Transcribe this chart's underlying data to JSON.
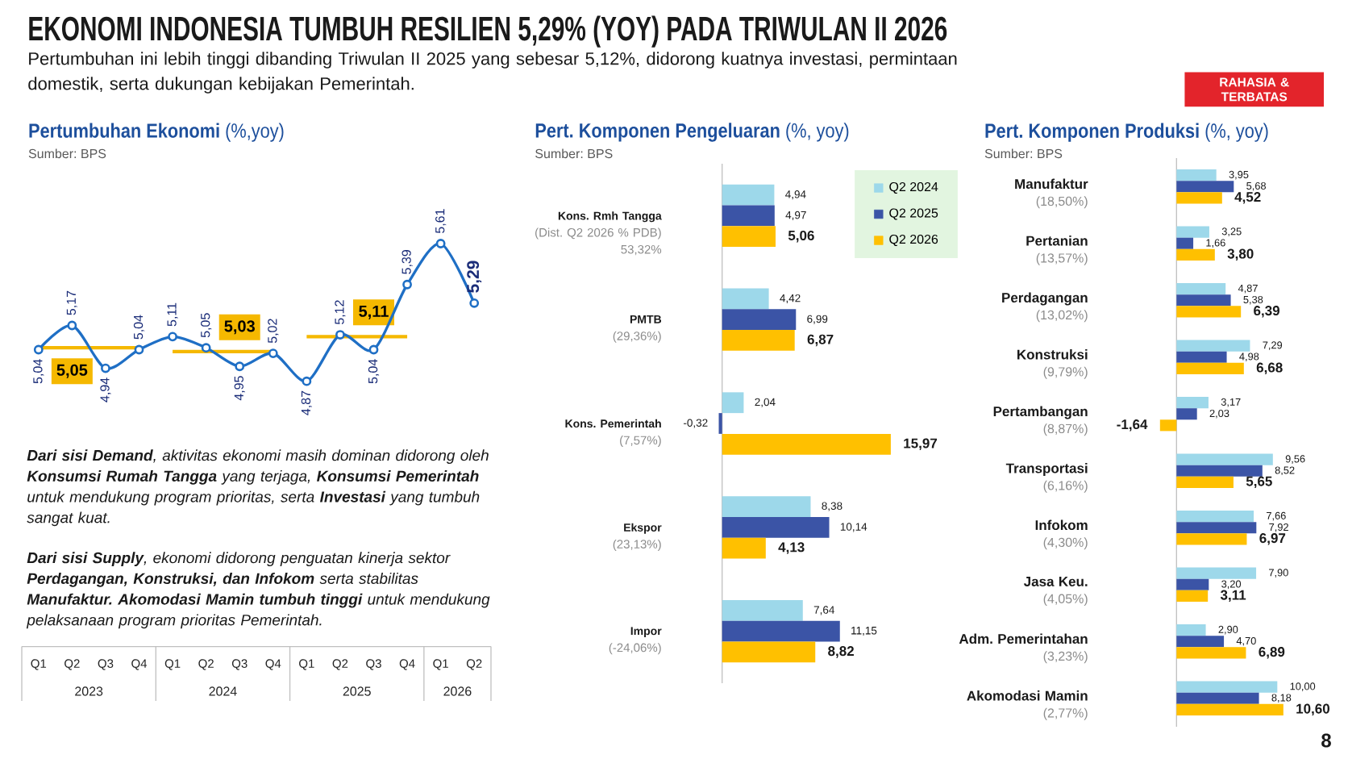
{
  "chart_data": [
    {
      "type": "other",
      "title": "EKONOMI INDONESIA TUMBUH RESILIEN 5,29% (YOY) PADA TRIWULAN II 2026",
      "subtitle": "Pertumbuhan ini lebih tinggi dibanding Triwulan II 2025 yang sebesar 5,12%, didorong kuatnya investasi, permintaan domestik, serta dukungan kebijakan Pemerintah.",
      "annotations": [
        "RAHASIA & TERBATAS",
        "**Dari sisi Demand**, aktivitas ekonomi masih dominan didorong oleh **Konsumsi Rumah Tangga** yang terjaga, **Konsumsi Pemerintah** untuk mendukung program prioritas, serta **Investasi** yang tumbuh sangat kuat.",
        "**Dari sisi Supply**, ekonomi didorong penguatan kinerja sektor **Perdagangan, Konstruksi, dan Infokom** serta stabilitas **Manufaktur. Akomodasi Mamin tumbuh tinggi** untuk mendukung pelaksanaan program prioritas Pemerintah.",
        "8"
      ]
    },
    {
      "type": "line",
      "title": "**Pertumbuhan Ekonomi** (%,yoy)",
      "annotations": [
        "Sumber: BPS",
        "2023",
        "2024",
        "2025",
        "2026"
      ],
      "categories": [
        "Q1",
        "Q2",
        "Q3",
        "Q4",
        "Q1",
        "Q2",
        "Q3",
        "Q4",
        "Q1",
        "Q2",
        "Q3",
        "Q4",
        "Q1",
        "Q2"
      ],
      "series": [
        {
          "color": "#1f6fc5",
          "values": [
            5.04,
            5.17,
            4.94,
            5.04,
            5.11,
            5.05,
            4.95,
            5.02,
            4.87,
            5.12,
            5.04,
            5.39,
            5.61,
            5.29
          ],
          "value_labels": [
            "5,04",
            "5,17",
            "4,94",
            "5,04",
            "5,11",
            "5,05",
            "4,95",
            "5,02",
            "4,87",
            "5,12",
            "5,04",
            "5,39",
            "5,61",
            "5,29"
          ]
        }
      ],
      "ref_lines": [
        {
          "axis": "y",
          "value": 5.05,
          "label": "5,05",
          "color": "#f5b800"
        },
        {
          "axis": "y",
          "value": 5.03,
          "label": "5,03",
          "color": "#f5b800"
        },
        {
          "axis": "y",
          "value": 5.11,
          "label": "5,11",
          "color": "#f5b800"
        }
      ],
      "marker": "circle",
      "tick_labels": "x"
    },
    {
      "type": "bar",
      "orientation": "horizontal",
      "title": "**Pert. Komponen Pengeluaran** (%, yoy)",
      "annotations": [
        "Sumber: BPS"
      ],
      "categories": [
        "**Kons. Rmh Tangga** (Dist. Q2 2026 % PDB)\n53,32%",
        "**PMTB** (29,36%)",
        "**Kons. Pemerintah** (7,57%)",
        "**Ekspor** (23,13%)",
        "**Impor** (-24,06%)"
      ],
      "series": [
        {
          "name": "Q2 2024",
          "color": "#9dd8ea",
          "values": [
            4.94,
            4.42,
            2.04,
            8.38,
            7.64
          ],
          "value_labels": [
            "4,94",
            "4,42",
            "2,04",
            "8,38",
            "7,64"
          ]
        },
        {
          "name": "Q2 2025",
          "color": "#3b54a6",
          "values": [
            4.97,
            6.99,
            -0.32,
            10.14,
            11.15
          ],
          "value_labels": [
            "4,97",
            "6,99",
            "-0,32",
            "10,14",
            "11,15"
          ]
        },
        {
          "name": "Q2 2026",
          "color": "#ffc000",
          "values": [
            5.06,
            6.87,
            15.97,
            4.13,
            8.82
          ],
          "value_labels": [
            "5,06",
            "6,87",
            "15,97",
            "4,13",
            "8,82"
          ]
        }
      ],
      "legend": "top right",
      "tick_labels": "y"
    },
    {
      "type": "bar",
      "orientation": "horizontal",
      "title": "**Pert. Komponen Produksi** (%, yoy)",
      "annotations": [
        "Sumber: BPS"
      ],
      "categories": [
        "**Manufaktur** (18,50%)",
        "**Pertanian** (13,57%)",
        "**Perdagangan** (13,02%)",
        "**Konstruksi** (9,79%)",
        "**Pertambangan** (8,87%)",
        "**Transportasi** (6,16%)",
        "**Infokom** (4,30%)",
        "**Jasa Keu.** (4,05%)",
        "**Adm. Pemerintahan** (3,23%)",
        "**Akomodasi Mamin** (2,77%)"
      ],
      "series": [
        {
          "color": "#9dd8ea",
          "values": [
            3.95,
            3.25,
            4.87,
            7.29,
            3.17,
            9.56,
            7.66,
            7.9,
            2.9,
            10.0
          ],
          "value_labels": [
            "3,95",
            "3,25",
            "4,87",
            "7,29",
            "3,17",
            "9,56",
            "7,66",
            "7,90",
            "2,90",
            "10,00"
          ]
        },
        {
          "color": "#3b54a6",
          "values": [
            5.68,
            1.66,
            5.38,
            4.98,
            2.03,
            8.52,
            7.92,
            3.2,
            4.7,
            8.18
          ],
          "value_labels": [
            "5,68",
            "1,66",
            "5,38",
            "4,98",
            "2,03",
            "8,52",
            "7,92",
            "3,20",
            "4,70",
            "8,18"
          ]
        },
        {
          "color": "#ffc000",
          "values": [
            4.52,
            3.8,
            6.39,
            6.68,
            -1.64,
            5.65,
            6.97,
            3.11,
            6.89,
            10.6
          ],
          "value_labels": [
            "4,52",
            "3,80",
            "6,39",
            "6,68",
            "-1,64",
            "5,65",
            "6,97",
            "3,11",
            "6,89",
            "10,60"
          ]
        }
      ],
      "tick_labels": "y"
    }
  ]
}
